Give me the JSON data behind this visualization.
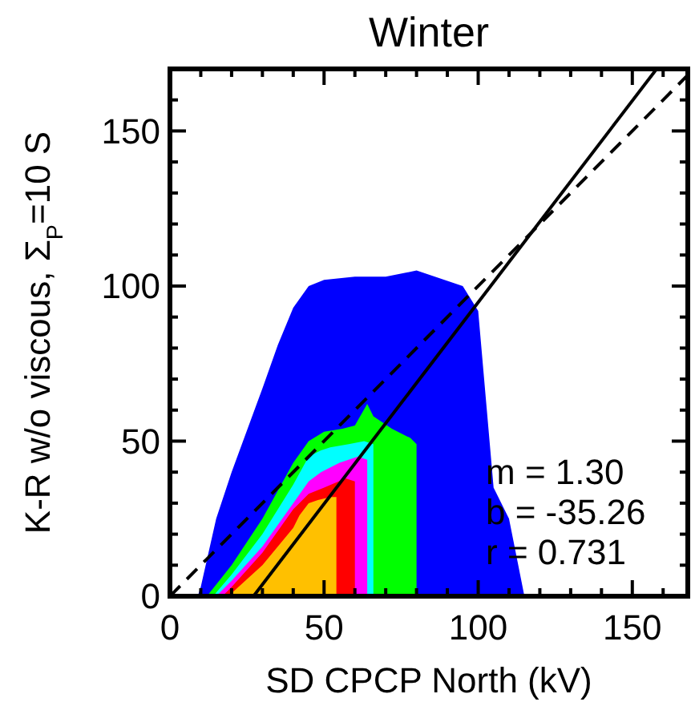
{
  "chart_data": {
    "type": "area",
    "title": "Winter",
    "xlabel": "SD CPCP North (kV)",
    "ylabel": "K-R w/o viscous, Σ$_{P}$=10 S",
    "xlim": [
      0,
      168
    ],
    "ylim": [
      0,
      170
    ],
    "xticks": [
      0,
      {
        "value": 10,
        "label": null
      },
      {
        "value": 20,
        "label": null
      },
      {
        "value": 30,
        "label": null
      },
      {
        "value": 40,
        "label": null
      },
      50,
      {
        "value": 60,
        "label": null
      },
      {
        "value": 70,
        "label": null
      },
      {
        "value": 80,
        "label": null
      },
      {
        "value": 90,
        "label": null
      },
      100,
      {
        "value": 110,
        "label": null
      },
      {
        "value": 120,
        "label": null
      },
      {
        "value": 130,
        "label": null
      },
      {
        "value": 140,
        "label": null
      },
      150,
      {
        "value": 160,
        "label": null
      }
    ],
    "yticks": [
      0,
      {
        "value": 10,
        "label": null
      },
      {
        "value": 20,
        "label": null
      },
      {
        "value": 30,
        "label": null
      },
      {
        "value": 40,
        "label": null
      },
      50,
      {
        "value": 60,
        "label": null
      },
      {
        "value": 70,
        "label": null
      },
      {
        "value": 80,
        "label": null
      },
      {
        "value": 90,
        "label": null
      },
      100,
      {
        "value": 110,
        "label": null
      },
      {
        "value": 120,
        "label": null
      },
      {
        "value": 130,
        "label": null
      },
      {
        "value": 140,
        "label": null
      },
      150,
      {
        "value": 160,
        "label": null
      }
    ],
    "grid": false,
    "series": [
      {
        "color": "#0000ff",
        "x": [
          9,
          10,
          15,
          20,
          30,
          35,
          40,
          45,
          50,
          60,
          70,
          80,
          95,
          100,
          105,
          110,
          115
        ],
        "values": [
          0,
          3,
          25,
          40,
          67,
          81,
          93,
          100,
          102,
          103,
          103,
          105,
          100,
          92,
          35,
          25,
          0
        ]
      },
      {
        "color": "#00ff00",
        "x": [
          12,
          20,
          30,
          40,
          45,
          50,
          56,
          60,
          64,
          66,
          72,
          78,
          80
        ],
        "values": [
          0,
          10,
          25,
          43,
          50,
          53,
          54,
          55,
          62,
          58,
          54,
          51,
          49
        ]
      },
      {
        "color": "#00ffff",
        "x": [
          14,
          20,
          30,
          40,
          45,
          49,
          52,
          58,
          63,
          66
        ],
        "values": [
          0,
          7,
          20,
          36,
          45,
          47,
          48,
          49,
          50,
          49
        ]
      },
      {
        "color": "#ff00ff",
        "x": [
          15,
          20,
          30,
          40,
          45,
          49,
          55,
          61,
          64
        ],
        "values": [
          0,
          5,
          16,
          30,
          37,
          40,
          43,
          45,
          44
        ]
      },
      {
        "color": "#ff0000",
        "x": [
          17,
          20,
          30,
          40,
          43,
          45,
          50,
          57,
          60
        ],
        "values": [
          0,
          3,
          14,
          28,
          31,
          33,
          35,
          38,
          37
        ]
      },
      {
        "color": "#ffc000",
        "x": [
          18,
          20,
          30,
          40,
          42,
          45,
          48,
          52,
          54
        ],
        "values": [
          0,
          1,
          10,
          22,
          26,
          30,
          31,
          32,
          32
        ]
      },
      {
        "type": "line",
        "color": "#000000",
        "line_style": "solid",
        "x": [
          27.1,
          157.9
        ],
        "values": [
          0,
          170
        ]
      },
      {
        "type": "line",
        "color": "#000000",
        "line_style": "dashed",
        "x": [
          0,
          168
        ],
        "values": [
          0,
          168
        ]
      }
    ],
    "annotations": [
      "m = 1.30",
      "b = -35.26",
      "r = 0.731"
    ]
  }
}
